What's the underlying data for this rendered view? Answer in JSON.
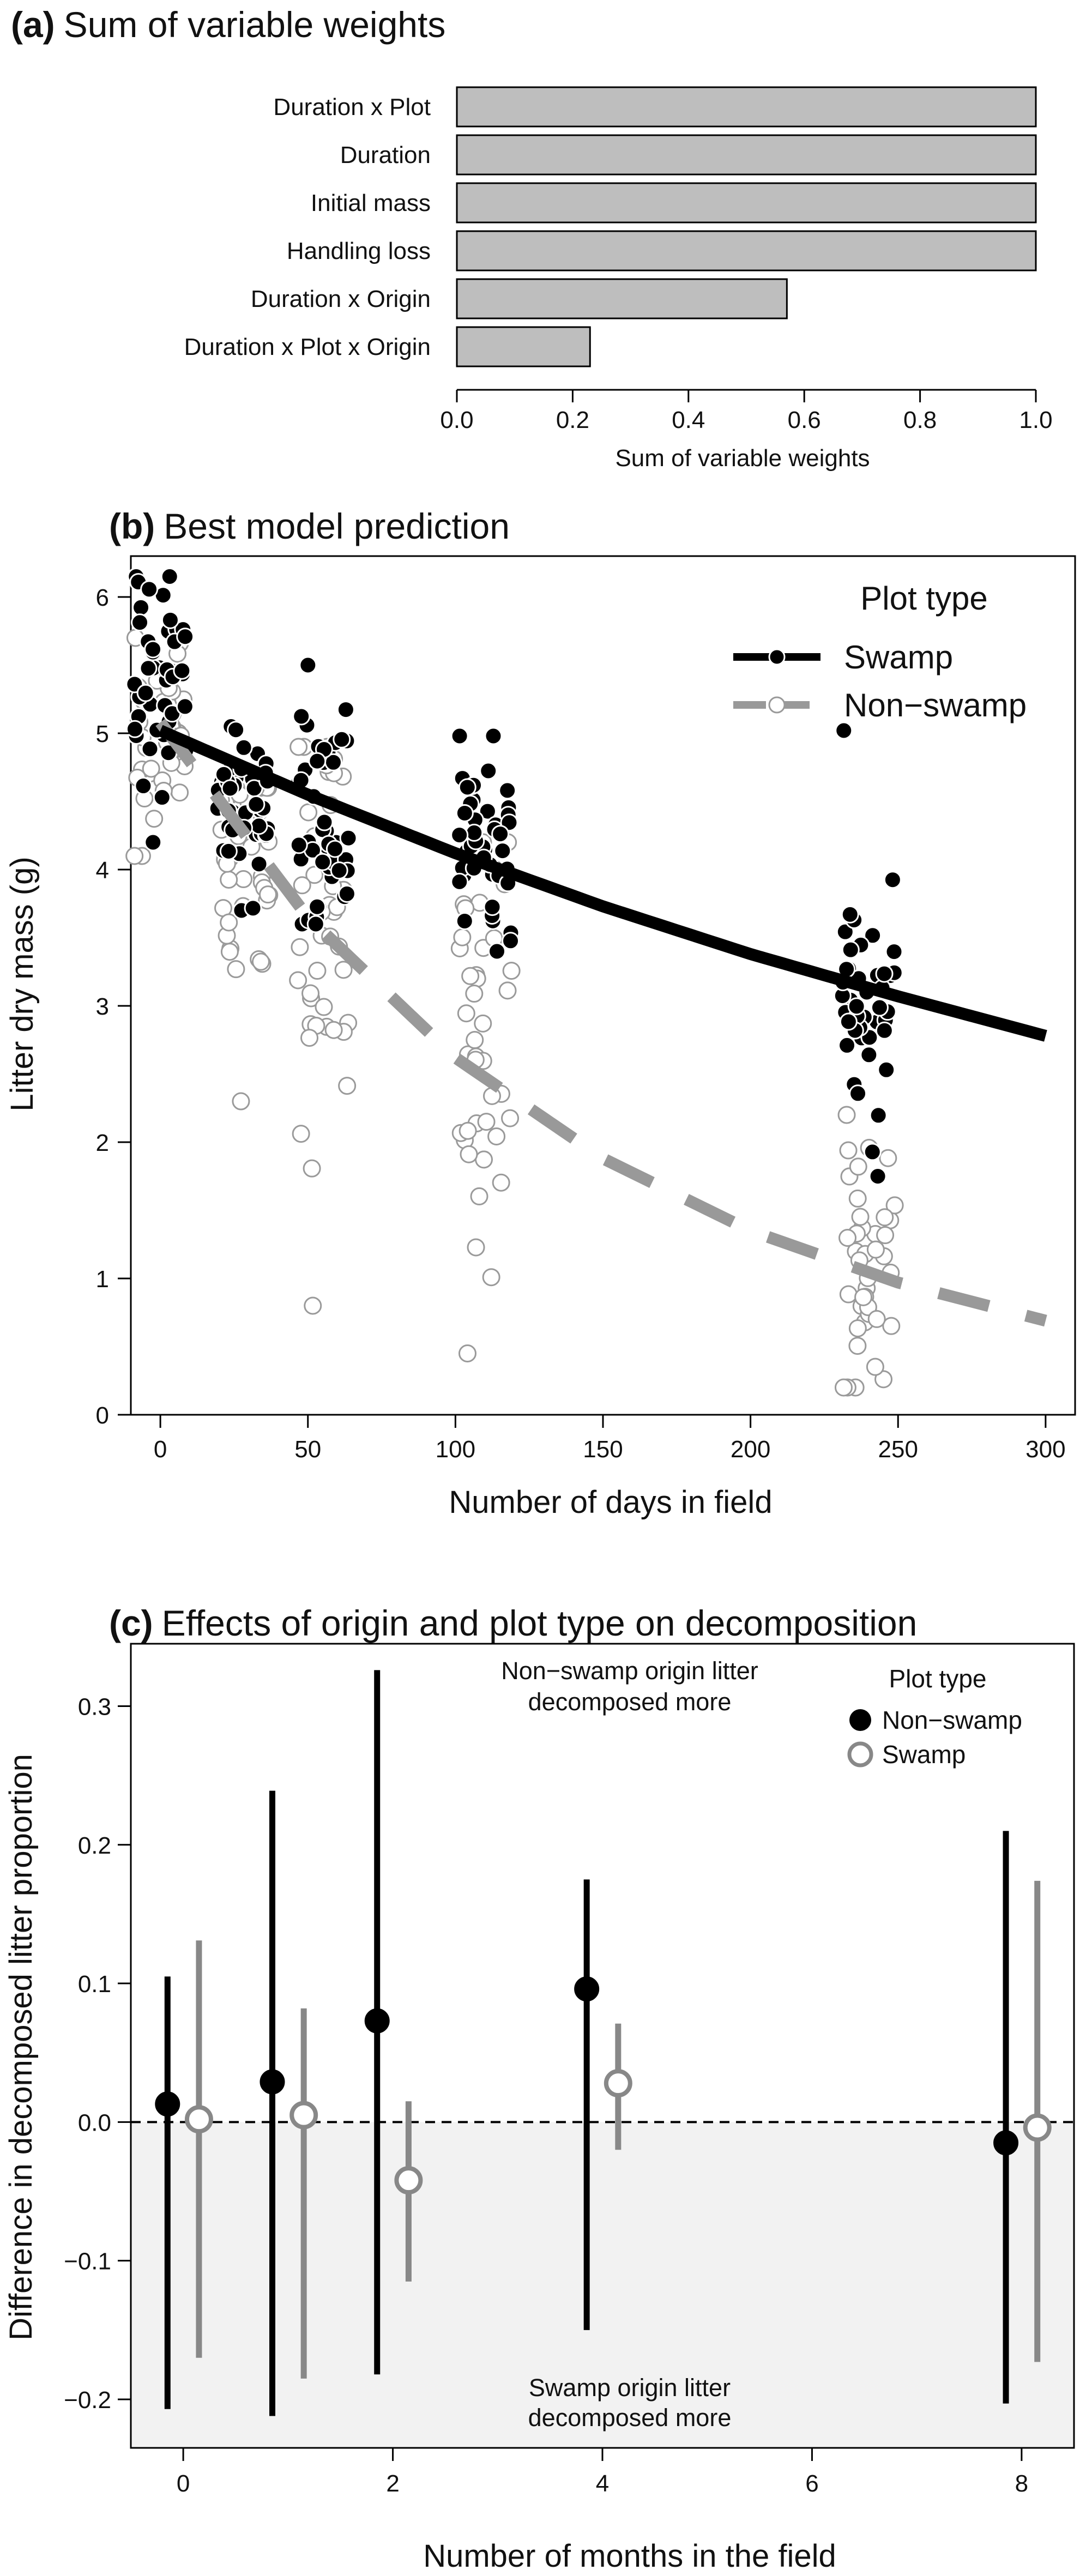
{
  "chart_data": [
    {
      "panel": "a",
      "type": "bar",
      "orientation": "horizontal",
      "letter": "(a)",
      "title": "Sum of variable weights",
      "xlabel": "Sum of variable weights",
      "xlim": [
        0,
        1
      ],
      "xticks": [
        "0.0",
        "0.2",
        "0.4",
        "0.6",
        "0.8",
        "1.0"
      ],
      "categories": [
        "Duration x Plot",
        "Duration",
        "Initial mass",
        "Handling loss",
        "Duration x Origin",
        "Duration x Plot x Origin"
      ],
      "values": [
        1.0,
        1.0,
        1.0,
        1.0,
        0.57,
        0.23
      ],
      "bar_color": "#bebebe"
    },
    {
      "panel": "b",
      "type": "scatter",
      "letter": "(b)",
      "title": "Best model prediction",
      "xlabel": "Number of days in field",
      "ylabel": "Litter dry mass (g)",
      "xlim": [
        -10,
        310
      ],
      "ylim": [
        0,
        6.3
      ],
      "xticks": [
        "0",
        "50",
        "100",
        "150",
        "200",
        "250",
        "300"
      ],
      "yticks": [
        "0",
        "1",
        "2",
        "3",
        "4",
        "5",
        "6"
      ],
      "legend": {
        "title": "Plot type",
        "position": "top-right",
        "entries": [
          "Swamp",
          "Non−swamp"
        ]
      },
      "series": [
        {
          "name": "Swamp",
          "style": "solid",
          "color": "#000000",
          "fit": [
            [
              0,
              5.02
            ],
            [
              50,
              4.55
            ],
            [
              100,
              4.12
            ],
            [
              150,
              3.73
            ],
            [
              200,
              3.38
            ],
            [
              250,
              3.07
            ],
            [
              300,
              2.78
            ]
          ],
          "point_groups": [
            {
              "x": 0,
              "mean": 5.35,
              "sd": 0.4,
              "min": 4.2,
              "max": 6.15,
              "n": 45
            },
            {
              "x": 28,
              "mean": 4.45,
              "sd": 0.3,
              "min": 3.7,
              "max": 5.05,
              "n": 45
            },
            {
              "x": 55,
              "mean": 4.5,
              "sd": 0.42,
              "min": 3.6,
              "max": 5.5,
              "n": 45
            },
            {
              "x": 110,
              "mean": 4.15,
              "sd": 0.35,
              "min": 3.4,
              "max": 4.98,
              "n": 45
            },
            {
              "x": 240,
              "mean": 3.15,
              "sd": 0.55,
              "min": 1.75,
              "max": 5.02,
              "n": 45
            }
          ]
        },
        {
          "name": "Non−swamp",
          "style": "dashed",
          "color": "#999999",
          "fit": [
            [
              0,
              5.08
            ],
            [
              50,
              3.65
            ],
            [
              100,
              2.62
            ],
            [
              150,
              1.88
            ],
            [
              200,
              1.35
            ],
            [
              250,
              0.97
            ],
            [
              300,
              0.69
            ]
          ],
          "point_groups": [
            {
              "x": 0,
              "mean": 5.0,
              "sd": 0.35,
              "min": 4.1,
              "max": 5.7,
              "n": 40
            },
            {
              "x": 28,
              "mean": 3.9,
              "sd": 0.55,
              "min": 2.3,
              "max": 4.6,
              "n": 40
            },
            {
              "x": 55,
              "mean": 3.6,
              "sd": 0.9,
              "min": 0.8,
              "max": 4.9,
              "n": 40
            },
            {
              "x": 110,
              "mean": 2.6,
              "sd": 0.85,
              "min": 0.45,
              "max": 4.2,
              "n": 40
            },
            {
              "x": 240,
              "mean": 1.0,
              "sd": 0.5,
              "min": 0.2,
              "max": 2.2,
              "n": 40
            }
          ]
        }
      ]
    },
    {
      "panel": "c",
      "type": "scatter",
      "error_bars": true,
      "letter": "(c)",
      "title": "Effects of origin and plot type on decomposition",
      "xlabel": "Number of months in the field",
      "ylabel": "Difference in decomposed litter proportion",
      "xlim": [
        -0.5,
        8.5
      ],
      "ylim": [
        -0.235,
        0.345
      ],
      "xticks": [
        "0",
        "2",
        "4",
        "6",
        "8"
      ],
      "yticks": [
        "−0.2",
        "−0.1",
        "0.0",
        "0.1",
        "0.2",
        "0.3"
      ],
      "annotations": {
        "top": [
          "Non−swamp origin litter",
          "decomposed more"
        ],
        "bottom": [
          "Swamp origin litter",
          "decomposed more"
        ]
      },
      "legend": {
        "title": "Plot type",
        "position": "top-right",
        "entries": [
          "Non−swamp",
          "Swamp"
        ]
      },
      "series": [
        {
          "name": "Non−swamp",
          "marker": "filled",
          "color": "#000000",
          "points": [
            {
              "x": -0.15,
              "y": 0.013,
              "lo": -0.207,
              "hi": 0.105
            },
            {
              "x": 0.85,
              "y": 0.029,
              "lo": -0.212,
              "hi": 0.239
            },
            {
              "x": 1.85,
              "y": 0.073,
              "lo": -0.182,
              "hi": 0.326
            },
            {
              "x": 3.85,
              "y": 0.096,
              "lo": -0.15,
              "hi": 0.175
            },
            {
              "x": 7.85,
              "y": -0.015,
              "lo": -0.203,
              "hi": 0.21
            }
          ]
        },
        {
          "name": "Swamp",
          "marker": "open",
          "color": "#888888",
          "points": [
            {
              "x": 0.15,
              "y": 0.002,
              "lo": -0.17,
              "hi": 0.131
            },
            {
              "x": 1.15,
              "y": 0.005,
              "lo": -0.185,
              "hi": 0.082
            },
            {
              "x": 2.15,
              "y": -0.042,
              "lo": -0.115,
              "hi": 0.015
            },
            {
              "x": 4.15,
              "y": 0.028,
              "lo": -0.02,
              "hi": 0.071
            },
            {
              "x": 8.15,
              "y": -0.004,
              "lo": -0.173,
              "hi": 0.174
            }
          ]
        }
      ]
    }
  ]
}
